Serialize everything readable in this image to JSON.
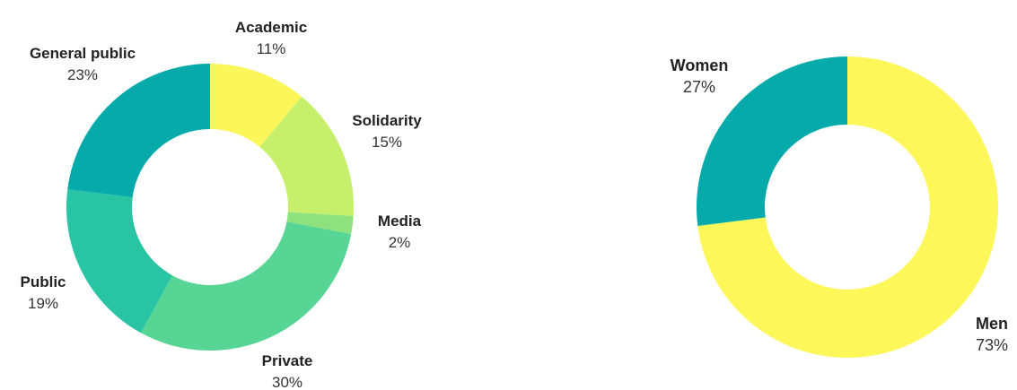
{
  "chart_data": [
    {
      "type": "pie",
      "style": "donut",
      "title": "",
      "slices": [
        {
          "label": "Academic",
          "value": 11,
          "value_label": "11%",
          "color": "#fbf75a"
        },
        {
          "label": "Solidarity",
          "value": 15,
          "value_label": "15%",
          "color": "#c6ef6b"
        },
        {
          "label": "Media",
          "value": 2,
          "value_label": "2%",
          "color": "#8ee27e"
        },
        {
          "label": "Private",
          "value": 30,
          "value_label": "30%",
          "color": "#56d595"
        },
        {
          "label": "Public",
          "value": 19,
          "value_label": "19%",
          "color": "#29c4a3"
        },
        {
          "label": "General public",
          "value": 23,
          "value_label": "23%",
          "color": "#06aaaa"
        }
      ]
    },
    {
      "type": "pie",
      "style": "donut",
      "title": "",
      "slices": [
        {
          "label": "Men",
          "value": 73,
          "value_label": "73%",
          "color": "#fdf75a"
        },
        {
          "label": "Women",
          "value": 27,
          "value_label": "27%",
          "color": "#06aaaa"
        }
      ]
    }
  ]
}
